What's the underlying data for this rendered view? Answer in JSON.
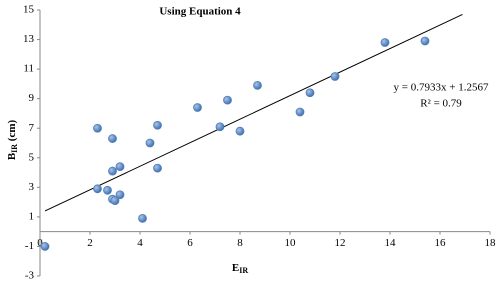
{
  "chart_data": {
    "type": "scatter",
    "title": "Using Equation 4",
    "xlabel": [
      "E",
      "IR"
    ],
    "ylabel": [
      "B",
      "IR",
      " (cm)"
    ],
    "x": [
      0.2,
      2.3,
      2.3,
      2.7,
      2.9,
      2.9,
      2.9,
      3.0,
      3.2,
      3.2,
      4.1,
      4.4,
      4.7,
      4.7,
      6.3,
      7.2,
      7.5,
      8.0,
      8.7,
      10.4,
      10.8,
      11.8,
      13.8,
      15.4
    ],
    "values": [
      -1.0,
      7.0,
      2.9,
      2.8,
      6.3,
      4.1,
      2.2,
      2.1,
      2.5,
      4.4,
      0.9,
      6.0,
      7.2,
      4.3,
      8.4,
      7.1,
      8.9,
      6.8,
      9.9,
      8.1,
      9.4,
      10.5,
      12.8,
      12.9
    ],
    "color": "#4f81bd",
    "trendline": {
      "x": [
        0.2,
        16.9
      ],
      "values": [
        1.4,
        14.7
      ],
      "equation": "y = 0.7933x + 1.2567",
      "r2": "R² = 0.79"
    },
    "xlim": [
      0,
      18
    ],
    "xticks": [
      0,
      2,
      4,
      6,
      8,
      10,
      12,
      14,
      16,
      18
    ],
    "ylim": [
      -3,
      15
    ],
    "yticks": [
      -3,
      -1,
      1,
      3,
      5,
      7,
      9,
      11,
      13,
      15
    ]
  }
}
